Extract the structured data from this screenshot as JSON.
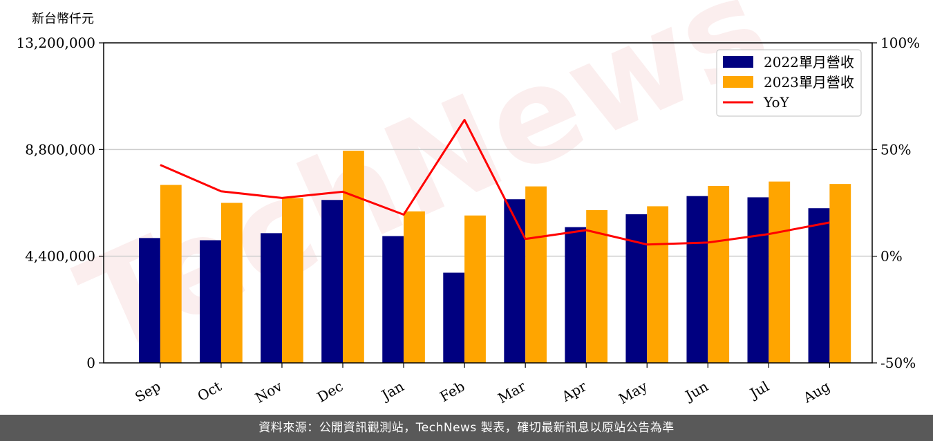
{
  "chart_data": {
    "type": "bar",
    "ylabel": "新台幣仟元",
    "categories": [
      "Sep",
      "Oct",
      "Nov",
      "Dec",
      "Jan",
      "Feb",
      "Mar",
      "Apr",
      "May",
      "Jun",
      "Jul",
      "Aug"
    ],
    "series": [
      {
        "name": "2022單月營收",
        "type": "bar",
        "axis": "left",
        "color": "#000080",
        "values": [
          5150000,
          5060000,
          5350000,
          6720000,
          5230000,
          3720000,
          6750000,
          5600000,
          6130000,
          6880000,
          6830000,
          6380000
        ]
      },
      {
        "name": "2023單月營收",
        "type": "bar",
        "axis": "left",
        "color": "#FFA500",
        "values": [
          7340000,
          6600000,
          6800000,
          8750000,
          6250000,
          6080000,
          7280000,
          6300000,
          6460000,
          7300000,
          7480000,
          7380000
        ]
      },
      {
        "name": "YoY",
        "type": "line",
        "axis": "right",
        "color": "#FF0000",
        "values": [
          42.8,
          30.4,
          27.3,
          30.2,
          19.5,
          63.9,
          8.1,
          12.2,
          5.5,
          6.4,
          10.4,
          15.8
        ]
      }
    ],
    "ylim_left": [
      0,
      13200000
    ],
    "yticks_left": [
      "0",
      "4,400,000",
      "8,800,000",
      "13,200,000"
    ],
    "ylim_right": [
      -50,
      100
    ],
    "yticks_right": [
      "-50%",
      "0%",
      "50%",
      "100%"
    ],
    "grid": true,
    "legend_position": "top-right"
  },
  "watermark": "TechNews",
  "footer": {
    "text": "資料來源：公開資訊觀測站，TechNews 製表，確切最新訊息以原站公告為準"
  }
}
